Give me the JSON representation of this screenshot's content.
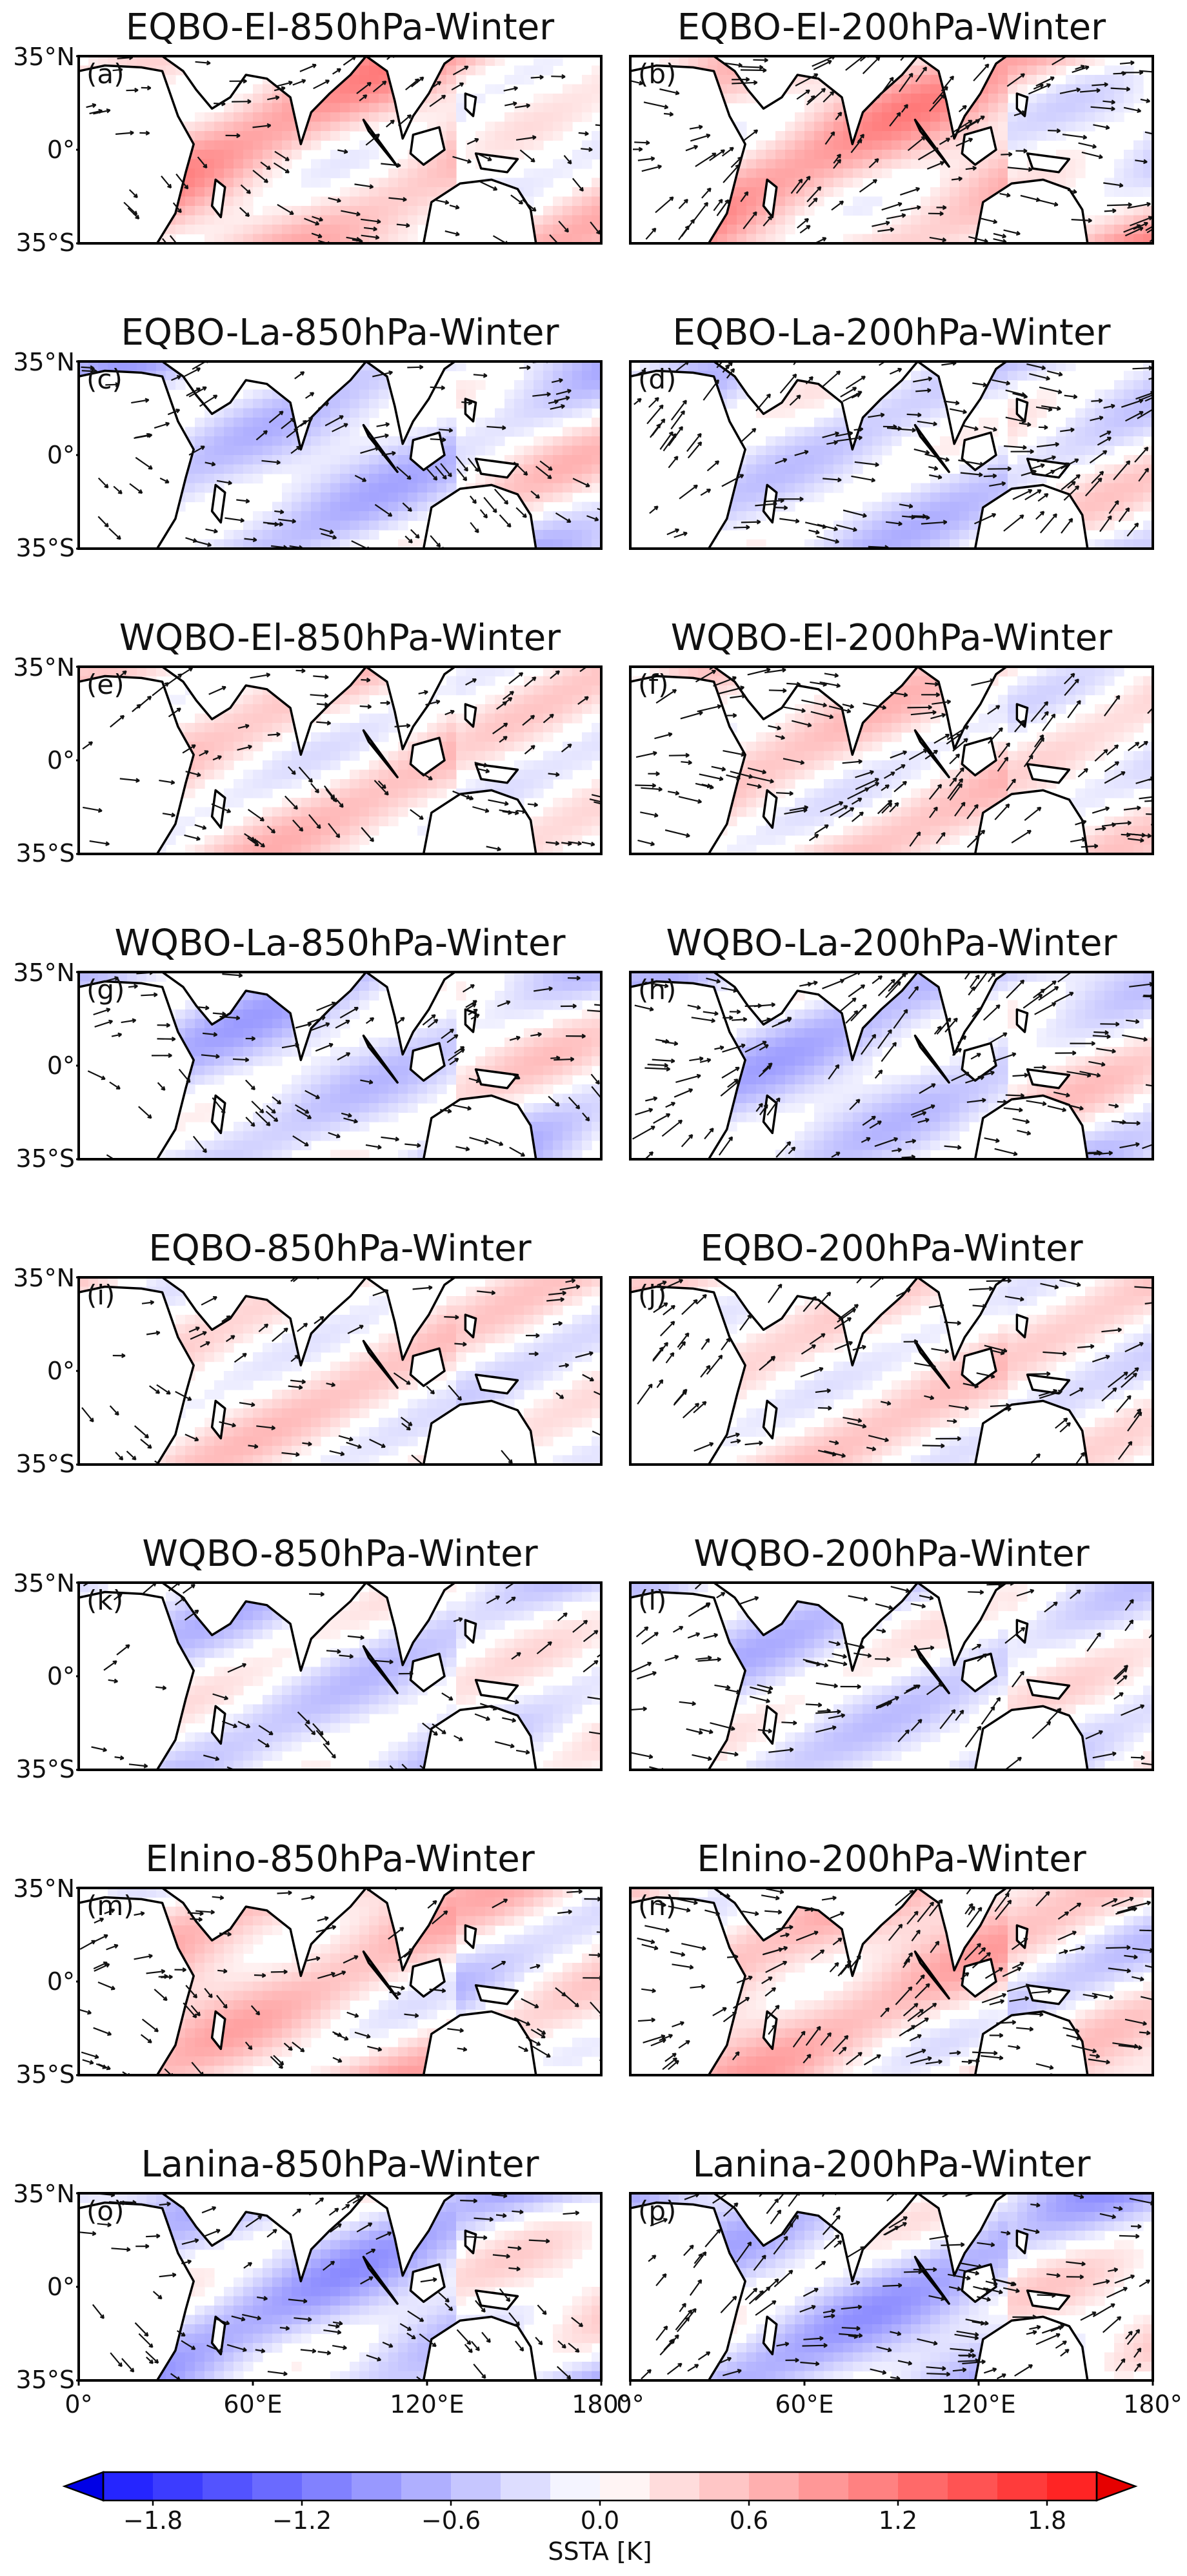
{
  "figure": {
    "panels": [
      {
        "id": "a",
        "label": "(a)",
        "title": "EQBO-El-850hPa-Winter",
        "ssta_tendency": 0.6,
        "wind_density": 0.55
      },
      {
        "id": "b",
        "label": "(b)",
        "title": "EQBO-El-200hPa-Winter",
        "ssta_tendency": 0.6,
        "wind_density": 0.85
      },
      {
        "id": "c",
        "label": "(c)",
        "title": "EQBO-La-850hPa-Winter",
        "ssta_tendency": -0.4,
        "wind_density": 0.6
      },
      {
        "id": "d",
        "label": "(d)",
        "title": "EQBO-La-200hPa-Winter",
        "ssta_tendency": -0.3,
        "wind_density": 0.9
      },
      {
        "id": "e",
        "label": "(e)",
        "title": "WQBO-El-850hPa-Winter",
        "ssta_tendency": 0.3,
        "wind_density": 0.55
      },
      {
        "id": "f",
        "label": "(f)",
        "title": "WQBO-El-200hPa-Winter",
        "ssta_tendency": 0.3,
        "wind_density": 0.85
      },
      {
        "id": "g",
        "label": "(g)",
        "title": "WQBO-La-850hPa-Winter",
        "ssta_tendency": -0.4,
        "wind_density": 0.55
      },
      {
        "id": "h",
        "label": "(h)",
        "title": "WQBO-La-200hPa-Winter",
        "ssta_tendency": -0.4,
        "wind_density": 0.85
      },
      {
        "id": "i",
        "label": "(i)",
        "title": "EQBO-850hPa-Winter",
        "ssta_tendency": 0.2,
        "wind_density": 0.4
      },
      {
        "id": "j",
        "label": "(j)",
        "title": "EQBO-200hPa-Winter",
        "ssta_tendency": 0.2,
        "wind_density": 0.6
      },
      {
        "id": "k",
        "label": "(k)",
        "title": "WQBO-850hPa-Winter",
        "ssta_tendency": -0.3,
        "wind_density": 0.35
      },
      {
        "id": "l",
        "label": "(l)",
        "title": "WQBO-200hPa-Winter",
        "ssta_tendency": -0.3,
        "wind_density": 0.55
      },
      {
        "id": "m",
        "label": "(m)",
        "title": "Elnino-850hPa-Winter",
        "ssta_tendency": 0.5,
        "wind_density": 0.55
      },
      {
        "id": "n",
        "label": "(n)",
        "title": "Elnino-200hPa-Winter",
        "ssta_tendency": 0.5,
        "wind_density": 0.85
      },
      {
        "id": "o",
        "label": "(o)",
        "title": "Lanina-850hPa-Winter",
        "ssta_tendency": -0.5,
        "wind_density": 0.55
      },
      {
        "id": "p",
        "label": "(p)",
        "title": "Lanina-200hPa-Winter",
        "ssta_tendency": -0.5,
        "wind_density": 0.85
      }
    ],
    "lat_ticks": [
      "35°N",
      "0°",
      "35°S"
    ],
    "lon_ticks": [
      "0°",
      "60°E",
      "120°E",
      "180°"
    ],
    "colorbar": {
      "label": "SSTA [K]",
      "ticks": [
        "−1.8",
        "−1.2",
        "−0.6",
        "0.0",
        "0.6",
        "1.2",
        "1.8"
      ],
      "tick_values": [
        -1.8,
        -1.2,
        -0.6,
        0.0,
        0.6,
        1.2,
        1.8
      ],
      "min": -2.0,
      "max": 2.0,
      "step": 0.2,
      "extend": "both",
      "colormap": "bwr"
    }
  }
}
